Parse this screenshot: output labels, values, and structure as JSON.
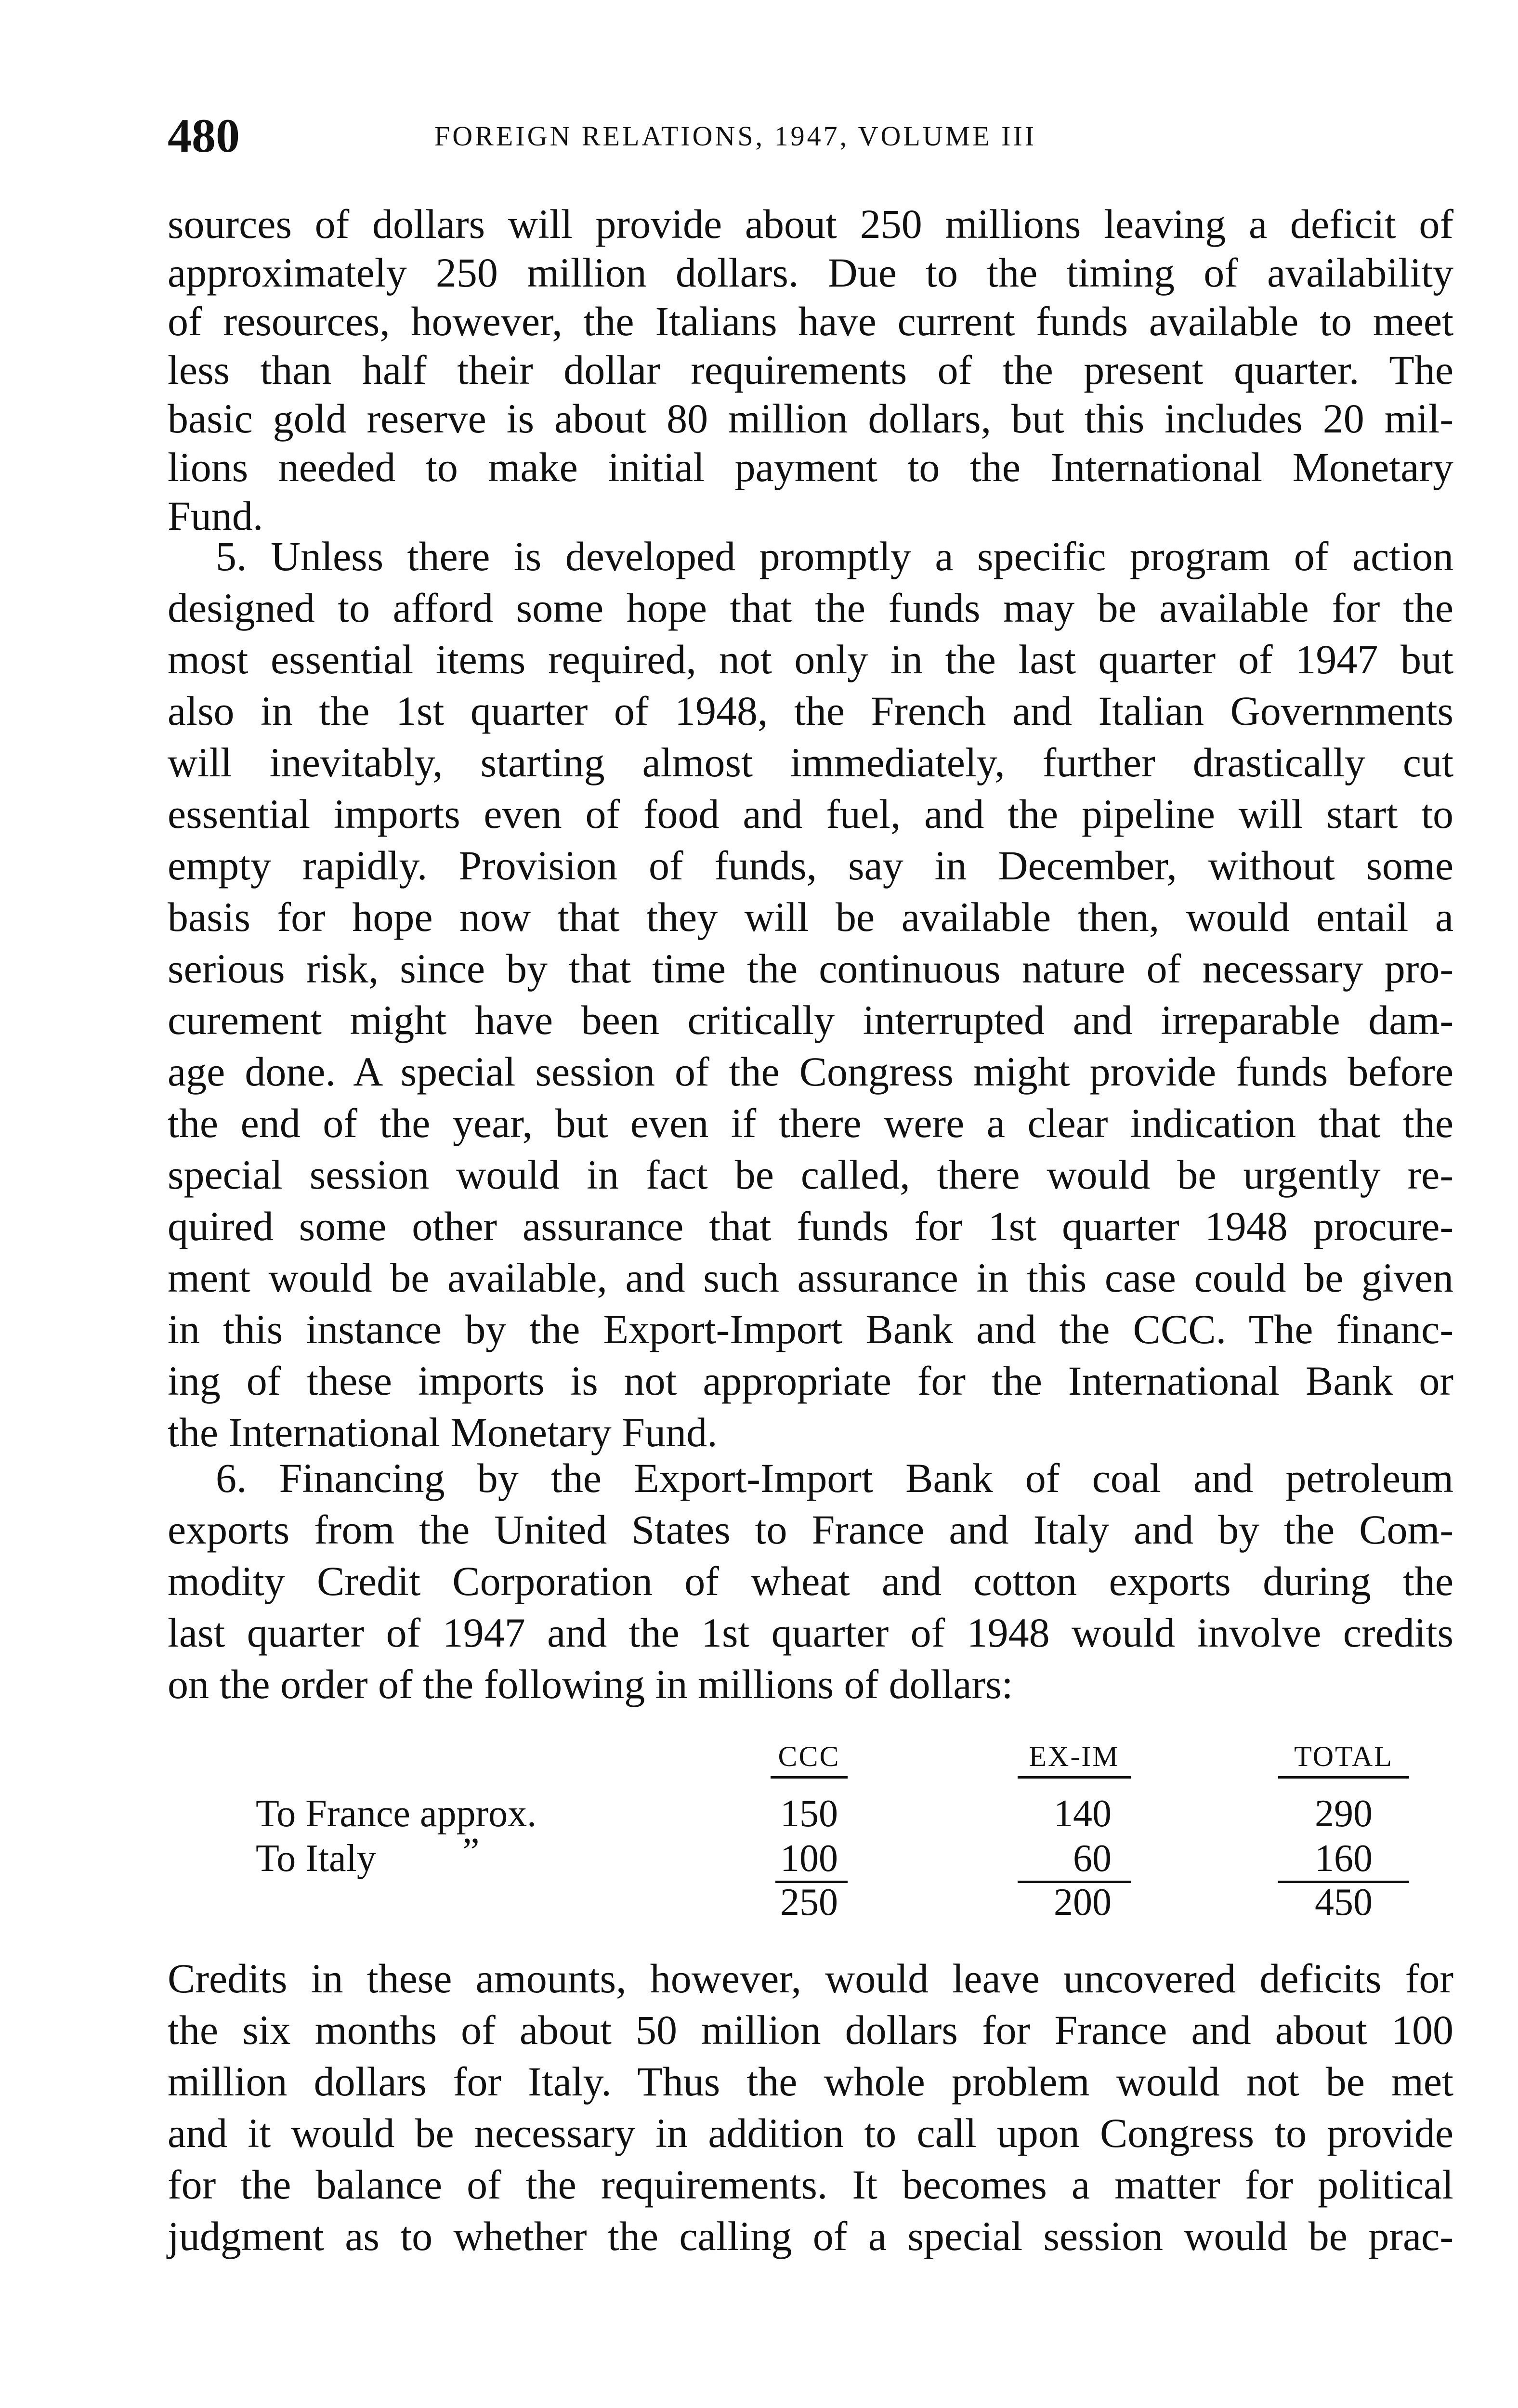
{
  "header": {
    "page_number": "480",
    "running_head": "FOREIGN RELATIONS, 1947, VOLUME III"
  },
  "paragraphs": [
    {
      "lines": [
        "sources of dollars will provide about 250 millions leaving a deficit of",
        "approximately 250 million dollars. Due to the timing of availability",
        "of resources, however, the Italians have current funds available to meet",
        "less than half their dollar requirements of the present quarter. The",
        "basic gold reserve is about 80 million dollars, but this includes 20 mil-",
        "lions needed to make initial payment to the International Monetary",
        "Fund."
      ]
    },
    {
      "lines": [
        "5. Unless there is developed promptly a specific program of action",
        "designed to afford some hope that the funds may be available for the",
        "most essential items required, not only in the last quarter of 1947 but",
        "also in the 1st quarter of 1948, the French and Italian Governments",
        "will inevitably, starting almost immediately, further drastically cut",
        "essential imports even of food and fuel, and the pipeline will start to",
        "empty rapidly. Provision of funds, say in December, without some",
        "basis for hope now that they will be available then, would entail a",
        "serious risk, since by that time the continuous nature of necessary pro-",
        "curement might have been critically interrupted and irreparable dam-",
        "age done. A special session of the Congress might provide funds before",
        "the end of the year, but even if there were a clear indication that the",
        "special session would in fact be called, there would be urgently re-",
        "quired some other assurance that funds for 1st quarter 1948 procure-",
        "ment would be available, and such assurance in this case could be given",
        "in this instance by the Export-Import Bank and the CCC. The financ-",
        "ing of these imports is not appropriate for the International Bank or",
        "the International Monetary Fund."
      ]
    },
    {
      "lines": [
        "6. Financing by the Export-Import Bank of coal and petroleum",
        "exports from the United States to France and Italy and by the Com-",
        "modity Credit Corporation of wheat and cotton exports during the",
        "last quarter of 1947 and the 1st quarter of 1948 would involve credits",
        "on the order of the following in millions of dollars:"
      ]
    },
    {
      "lines": [
        "Credits in these amounts, however, would leave uncovered deficits for",
        "the six months of about 50 million dollars for France and about 100",
        "million dollars for Italy. Thus the whole problem would not be met",
        "and it would be necessary in addition to call upon Congress to provide",
        "for the balance of the requirements. It becomes a matter for political",
        "judgment as to whether the calling of a special session would be prac-"
      ]
    }
  ],
  "table": {
    "columns": [
      "CCC",
      "EX-IM",
      "TOTAL"
    ],
    "rows": [
      {
        "label": "To France approx.",
        "ditto": "",
        "values": [
          "150",
          "140",
          "290"
        ]
      },
      {
        "label": "To Italy",
        "ditto": "”",
        "values": [
          "100",
          "60",
          "160"
        ]
      }
    ],
    "totals": [
      "250",
      "200",
      "450"
    ]
  }
}
